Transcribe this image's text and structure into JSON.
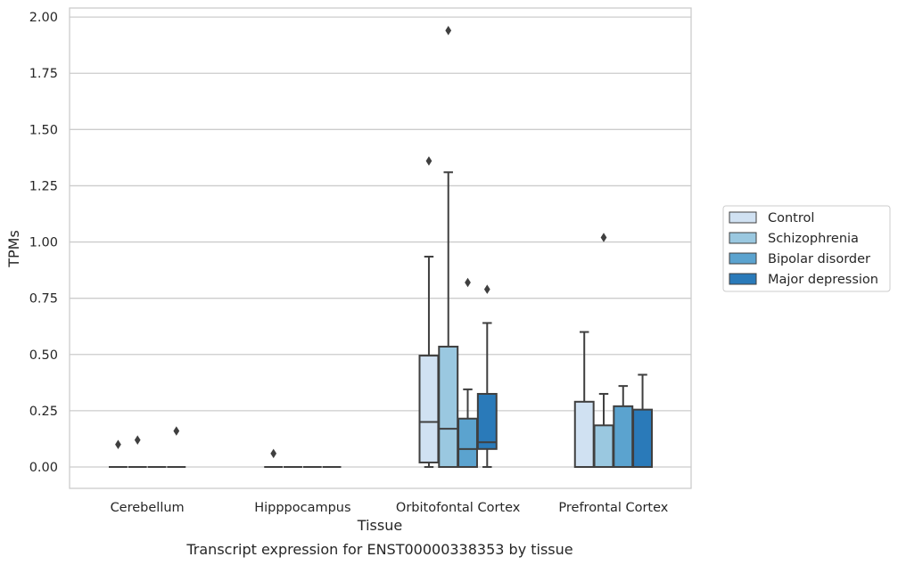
{
  "chart_data": {
    "type": "box",
    "title": "Transcript expression for ENST00000338353 by tissue",
    "xlabel": "Tissue",
    "ylabel": "TPMs",
    "ylim": [
      -0.095,
      2.04
    ],
    "yticks": [
      "0.00",
      "0.25",
      "0.50",
      "0.75",
      "1.00",
      "1.25",
      "1.50",
      "1.75",
      "2.00"
    ],
    "grid": "horizontal",
    "legend_position": "right",
    "categories": [
      "Cerebellum",
      "Hipppocampus",
      "Orbitofontal Cortex",
      "Prefrontal Cortex"
    ],
    "series": [
      {
        "name": "Control",
        "color": "#d0e1f2",
        "boxes": [
          {
            "q1": 0,
            "median": 0,
            "q3": 0,
            "whislo": 0,
            "whishi": 0,
            "fliers": [
              0.1
            ]
          },
          {
            "q1": 0,
            "median": 0,
            "q3": 0,
            "whislo": 0,
            "whishi": 0,
            "fliers": [
              0.06
            ]
          },
          {
            "q1": 0.02,
            "median": 0.2,
            "q3": 0.495,
            "whislo": 0,
            "whishi": 0.935,
            "fliers": [
              1.36
            ]
          },
          {
            "q1": 0,
            "median": 0,
            "q3": 0.29,
            "whislo": 0,
            "whishi": 0.6,
            "fliers": []
          }
        ]
      },
      {
        "name": "Schizophrenia",
        "color": "#9ac8e0",
        "boxes": [
          {
            "q1": 0,
            "median": 0,
            "q3": 0,
            "whislo": 0,
            "whishi": 0,
            "fliers": [
              0.12
            ]
          },
          {
            "q1": 0,
            "median": 0,
            "q3": 0,
            "whislo": 0,
            "whishi": 0,
            "fliers": []
          },
          {
            "q1": 0,
            "median": 0.17,
            "q3": 0.535,
            "whislo": 0,
            "whishi": 1.31,
            "fliers": [
              1.94
            ]
          },
          {
            "q1": 0,
            "median": 0,
            "q3": 0.185,
            "whislo": 0,
            "whishi": 0.325,
            "fliers": [
              1.02
            ]
          }
        ]
      },
      {
        "name": "Bipolar disorder",
        "color": "#5ba3cf",
        "boxes": [
          {
            "q1": 0,
            "median": 0,
            "q3": 0,
            "whislo": 0,
            "whishi": 0,
            "fliers": []
          },
          {
            "q1": 0,
            "median": 0,
            "q3": 0,
            "whislo": 0,
            "whishi": 0,
            "fliers": []
          },
          {
            "q1": 0,
            "median": 0.08,
            "q3": 0.215,
            "whislo": 0,
            "whishi": 0.345,
            "fliers": [
              0.82
            ]
          },
          {
            "q1": 0,
            "median": 0,
            "q3": 0.27,
            "whislo": 0,
            "whishi": 0.36,
            "fliers": []
          }
        ]
      },
      {
        "name": "Major depression",
        "color": "#2a7ab9",
        "boxes": [
          {
            "q1": 0,
            "median": 0,
            "q3": 0,
            "whislo": 0,
            "whishi": 0,
            "fliers": [
              0.16
            ]
          },
          {
            "q1": 0,
            "median": 0,
            "q3": 0,
            "whislo": 0,
            "whishi": 0,
            "fliers": []
          },
          {
            "q1": 0.08,
            "median": 0.11,
            "q3": 0.325,
            "whislo": 0,
            "whishi": 0.64,
            "fliers": [
              0.79
            ]
          },
          {
            "q1": 0,
            "median": 0,
            "q3": 0.255,
            "whislo": 0,
            "whishi": 0.41,
            "fliers": []
          }
        ]
      }
    ]
  }
}
